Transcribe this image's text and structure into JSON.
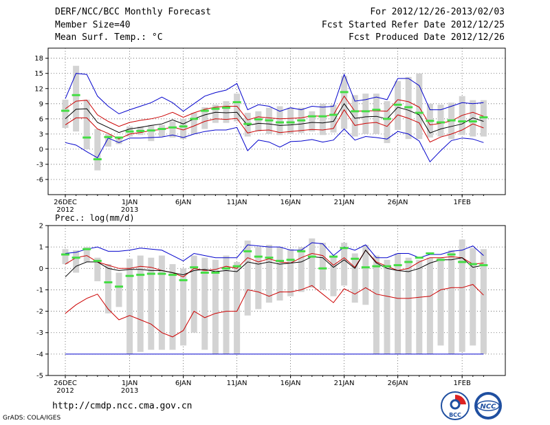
{
  "header": {
    "title": "DERF/NCC/BCC Monthly Forecast",
    "member_size": "Member Size=40",
    "variable": "Mean Surf. Temp.: °C",
    "for_period": "For 2012/12/26-2013/02/03",
    "fcst_started": "Fcst Started Refer Date 2012/12/25",
    "fcst_produced": "Fcst Produced Date 2012/12/26"
  },
  "footer": {
    "url": "http://cmdp.ncc.cma.gov.cn",
    "credit": "GrADS: COLA/IGES",
    "logo_bcc": "BCC",
    "logo_ncc": "NCC"
  },
  "colors": {
    "max_line": "#0000cc",
    "pct_line": "#cc0000",
    "mean_line": "#000000",
    "box": "#d3d3d3",
    "median": "#44dd44"
  },
  "chart_data": [
    {
      "type": "line",
      "title": "Mean Surf. Temp.: °C",
      "ylabel": "°C",
      "ylim": [
        -9,
        20
      ],
      "yticks": [
        -6,
        -3,
        0,
        3,
        6,
        9,
        12,
        15,
        18
      ],
      "x_tick_labels": [
        {
          "day": 0,
          "label": "26DEC",
          "year": "2012"
        },
        {
          "day": 6,
          "label": "1JAN",
          "year": "2013"
        },
        {
          "day": 11,
          "label": "6JAN",
          "year": ""
        },
        {
          "day": 16,
          "label": "11JAN",
          "year": ""
        },
        {
          "day": 21,
          "label": "16JAN",
          "year": ""
        },
        {
          "day": 26,
          "label": "21JAN",
          "year": ""
        },
        {
          "day": 31,
          "label": "26JAN",
          "year": ""
        },
        {
          "day": 37,
          "label": "1FEB",
          "year": ""
        }
      ],
      "series": [
        {
          "name": "max",
          "color": "#0000cc",
          "values": [
            10,
            15,
            14.8,
            10.5,
            8.5,
            7,
            7.8,
            8.5,
            9.2,
            10.3,
            9.2,
            7.5,
            9,
            10.5,
            11.2,
            11.7,
            13,
            7.8,
            8.8,
            8.5,
            7.5,
            8.2,
            7.8,
            8.5,
            8.3,
            8.5,
            14.8,
            9.5,
            9.8,
            10.3,
            9.8,
            14,
            14,
            12.6,
            7.8,
            7.8,
            8.5,
            9.2,
            9,
            9.2
          ]
        },
        {
          "name": "p90",
          "color": "#cc0000",
          "values": [
            8,
            9.5,
            9.7,
            6.8,
            5.5,
            4.5,
            5.3,
            5.7,
            6,
            6.5,
            7.3,
            6.3,
            7.2,
            7.9,
            8.3,
            8.5,
            8.5,
            5.8,
            6.4,
            6.2,
            6,
            6.1,
            6.2,
            6.6,
            6.5,
            6.8,
            10.5,
            7.5,
            7.6,
            7.6,
            7.5,
            9.8,
            9.4,
            8.3,
            4.8,
            5.1,
            5.6,
            6.7,
            7.3,
            6.5
          ]
        },
        {
          "name": "mean",
          "color": "#000000",
          "values": [
            6,
            7.9,
            8,
            5.3,
            4.3,
            3.3,
            4,
            4.3,
            4.7,
            5,
            5.8,
            5,
            6,
            6.8,
            7.3,
            7.2,
            7.3,
            4.7,
            5.1,
            5,
            4.7,
            4.8,
            5,
            5.3,
            5.2,
            5.5,
            9,
            6.1,
            6.4,
            6.5,
            6,
            8.3,
            7.7,
            6.8,
            3.2,
            4,
            4.5,
            5,
            6.2,
            5.5
          ]
        },
        {
          "name": "p10",
          "color": "#cc0000",
          "values": [
            4.8,
            6.2,
            6.2,
            4,
            3.1,
            2,
            3,
            3.3,
            3.7,
            3.9,
            4.4,
            3.8,
            4.6,
            5.5,
            6,
            5.9,
            6.1,
            3.2,
            3.7,
            3.8,
            3.3,
            3.5,
            3.7,
            3.9,
            3.8,
            4.1,
            7.8,
            4.7,
            5.1,
            5.3,
            4.5,
            6.8,
            6.1,
            5.2,
            1.4,
            2.4,
            3,
            3.8,
            5,
            4.2
          ]
        },
        {
          "name": "min",
          "color": "#0000cc",
          "values": [
            1.3,
            0.8,
            -0.5,
            -1.7,
            2.2,
            1.3,
            2.2,
            2.2,
            2.3,
            2.4,
            2.8,
            2.3,
            3,
            3.5,
            3.8,
            3.8,
            4.3,
            -0.3,
            1.8,
            1.4,
            0.4,
            1.5,
            1.6,
            1.9,
            1.4,
            1.8,
            4,
            1.8,
            2.5,
            2.3,
            2,
            3.5,
            3,
            1.6,
            -2.5,
            -0.3,
            1.7,
            2.2,
            2,
            1.3
          ]
        }
      ],
      "boxes": {
        "top": [
          9.8,
          16.5,
          9.8,
          4,
          3,
          2.5,
          4.5,
          4.5,
          4.8,
          4.8,
          5.5,
          6,
          7.2,
          8.3,
          8.8,
          9.5,
          11,
          7.2,
          7.5,
          8.2,
          8.5,
          8.2,
          8.2,
          7.5,
          9,
          8.8,
          14.5,
          10.7,
          11,
          11,
          9.5,
          13.5,
          14.3,
          15,
          9,
          8.8,
          9.2,
          10.5,
          9.7,
          9.7
        ],
        "bottom": [
          4.2,
          3.5,
          0,
          -4.2,
          0.5,
          1,
          2.5,
          2.8,
          1.6,
          2.5,
          2.3,
          2,
          3,
          4,
          5.2,
          5.2,
          5.5,
          2.5,
          3.5,
          3,
          2.8,
          3,
          3.2,
          3.5,
          2.8,
          3.3,
          4,
          2.5,
          3,
          3,
          1.2,
          3.8,
          2,
          2,
          2.3,
          2.5,
          2,
          2.8,
          2.5,
          2.5
        ],
        "median": [
          7.6,
          10.7,
          2.3,
          -2,
          2.4,
          2.3,
          3.5,
          3.6,
          3.7,
          4,
          4.3,
          4.5,
          6,
          7.6,
          8,
          8.2,
          9.3,
          5,
          5.9,
          5.7,
          5.3,
          5.3,
          5.7,
          6.5,
          6.5,
          6.8,
          11.3,
          7.5,
          7.5,
          7.8,
          6,
          8.8,
          8.3,
          7.2,
          5.6,
          5.3,
          5.7,
          5.5,
          5.5,
          6.3
        ]
      }
    },
    {
      "type": "line",
      "title": "Prec.: log(mm/d)",
      "ylabel": "log(mm/d)",
      "ylim": [
        -5,
        2
      ],
      "yticks": [
        -5,
        -4,
        -3,
        -2,
        -1,
        0,
        1,
        2
      ],
      "x_tick_labels": [
        {
          "day": 0,
          "label": "26DEC",
          "year": "2012"
        },
        {
          "day": 6,
          "label": "1JAN",
          "year": "2013"
        },
        {
          "day": 11,
          "label": "6JAN",
          "year": ""
        },
        {
          "day": 16,
          "label": "11JAN",
          "year": ""
        },
        {
          "day": 21,
          "label": "16JAN",
          "year": ""
        },
        {
          "day": 26,
          "label": "21JAN",
          "year": ""
        },
        {
          "day": 31,
          "label": "26JAN",
          "year": ""
        },
        {
          "day": 37,
          "label": "1FEB",
          "year": ""
        }
      ],
      "series": [
        {
          "name": "max",
          "color": "#0000cc",
          "values": [
            0.7,
            0.75,
            0.9,
            1,
            0.8,
            0.8,
            0.85,
            0.95,
            0.9,
            0.85,
            0.6,
            0.35,
            0.7,
            0.6,
            0.5,
            0.5,
            0.5,
            1.1,
            1.05,
            1,
            1,
            0.85,
            0.85,
            1.2,
            1.15,
            0.6,
            1,
            0.85,
            1.1,
            0.5,
            0.5,
            0.7,
            0.7,
            0.5,
            0.65,
            0.65,
            0.8,
            0.85,
            1.05,
            0.6
          ]
        },
        {
          "name": "p90",
          "color": "#cc0000",
          "values": [
            0.2,
            0.5,
            0.6,
            0.3,
            0.15,
            0,
            0,
            0.1,
            0.05,
            -0.1,
            -0.2,
            -0.4,
            0,
            -0.1,
            -0.05,
            0.1,
            0,
            0.5,
            0.3,
            0.45,
            0.3,
            0.25,
            0.5,
            0.7,
            0.6,
            0.15,
            0.5,
            0.05,
            0.85,
            0.3,
            0.1,
            -0.1,
            0,
            0.3,
            0.5,
            0.5,
            0.55,
            0.5,
            0.2,
            0.25
          ]
        },
        {
          "name": "mean",
          "color": "#000000",
          "values": [
            -0.4,
            0.1,
            0.3,
            0.3,
            0,
            -0.1,
            -0.05,
            -0.05,
            -0.1,
            -0.1,
            -0.2,
            -0.3,
            -0.1,
            -0.05,
            -0.15,
            -0.1,
            -0.15,
            0.3,
            0.2,
            0.3,
            0.2,
            0.25,
            0.3,
            0.55,
            0.5,
            0.05,
            0.4,
            0,
            0.85,
            0.25,
            0,
            -0.1,
            -0.15,
            0,
            0.25,
            0.4,
            0.4,
            0.5,
            0.05,
            0.15
          ]
        },
        {
          "name": "p10",
          "color": "#cc0000",
          "values": [
            -2.1,
            -1.7,
            -1.4,
            -1.2,
            -1.9,
            -2.4,
            -2.2,
            -2.4,
            -2.6,
            -3,
            -3.2,
            -2.9,
            -2,
            -2.3,
            -2.1,
            -2,
            -2,
            -1,
            -1.1,
            -1.3,
            -1.1,
            -1.1,
            -1,
            -0.8,
            -1.2,
            -1.6,
            -0.95,
            -1.2,
            -0.9,
            -1.2,
            -1.3,
            -1.4,
            -1.4,
            -1.35,
            -1.3,
            -1,
            -0.9,
            -0.9,
            -0.75,
            -1.25
          ]
        },
        {
          "name": "min",
          "color": "#0000cc",
          "values": [
            -4,
            -4,
            -4,
            -4,
            -4,
            -4,
            -4,
            -4,
            -4,
            -4,
            -4,
            -4,
            -4,
            -4,
            -4,
            -4,
            -4,
            -4,
            -4,
            -4,
            -4,
            -4,
            -4,
            -4,
            -4,
            -4,
            -4,
            -4,
            -4,
            -4,
            -4,
            -4,
            -4,
            -4,
            -4,
            -4,
            -4,
            -4,
            -4,
            -4
          ]
        }
      ],
      "boxes": {
        "top": [
          0.9,
          0.85,
          1,
          0.5,
          0.2,
          -0.2,
          0.45,
          0.6,
          0.5,
          0.6,
          0.2,
          0,
          0.6,
          0.5,
          0.4,
          0.6,
          0.3,
          1.3,
          1,
          1.1,
          1,
          0.9,
          1,
          1.4,
          1.2,
          0.6,
          1.2,
          0.7,
          1.1,
          0.6,
          0.4,
          0.7,
          0.5,
          0.4,
          0.5,
          0.5,
          0.85,
          1.35,
          0.95,
          0.9
        ],
        "bottom": [
          0.2,
          -0.2,
          0.3,
          -0.6,
          -2.1,
          -1.8,
          -4,
          -3.9,
          -3.8,
          -3.8,
          -3.8,
          -3.6,
          -3,
          -3.8,
          -4,
          -4,
          -4,
          -2.2,
          -1.9,
          -1.6,
          -1.5,
          -1.3,
          -1.1,
          -0.9,
          -1,
          -1.3,
          -0.8,
          -1.6,
          -1.7,
          -4,
          -4,
          -4,
          -4,
          -4,
          -4,
          -3.6,
          -4,
          -3.9,
          -3.6,
          -4
        ],
        "median": [
          0.65,
          0.5,
          0.9,
          0.35,
          -0.65,
          -0.85,
          -0.35,
          -0.3,
          -0.25,
          -0.25,
          -0.3,
          -0.55,
          0.05,
          -0.2,
          -0.2,
          0,
          0.1,
          0.8,
          0.55,
          0.5,
          0.35,
          0.4,
          0.8,
          0.55,
          0,
          0.55,
          0.95,
          0.45,
          0.05,
          0.1,
          0.1,
          0.15,
          0.3,
          0.5,
          0.7,
          0.4,
          0.65,
          0.3,
          0.2,
          0.15
        ]
      }
    }
  ]
}
